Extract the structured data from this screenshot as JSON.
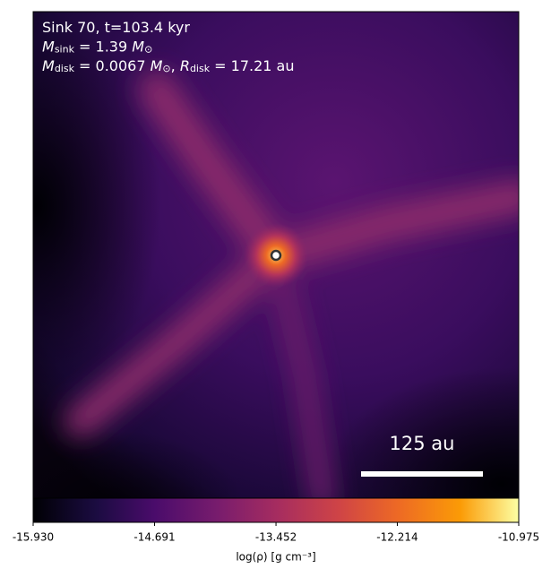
{
  "chart_data": {
    "type": "image",
    "annotations": [
      [
        {
          "text": "Sink 70, t=103.4 kyr"
        }
      ],
      [
        {
          "text": "M",
          "italic": true
        },
        {
          "text": "sink",
          "sub": true
        },
        {
          "text": " = 1.39 "
        },
        {
          "text": "M",
          "italic": true
        },
        {
          "text": "⊙",
          "sub": true
        }
      ],
      [
        {
          "text": "M",
          "italic": true
        },
        {
          "text": "disk",
          "sub": true
        },
        {
          "text": " = 0.0067 "
        },
        {
          "text": "M",
          "italic": true
        },
        {
          "text": "⊙",
          "sub": true
        },
        {
          "text": ", "
        },
        {
          "text": "R",
          "italic": true
        },
        {
          "text": "disk",
          "sub": true
        },
        {
          "text": " = 17.21 au"
        }
      ]
    ],
    "scalebar_label": "125 au",
    "colorbar": {
      "label": "log(ρ) [g cm⁻³]",
      "colormap": "inferno",
      "clim": [
        -15.93,
        -10.975
      ],
      "ticks": [
        {
          "value": -15.93,
          "label": "-15.930"
        },
        -14.691,
        -13.452,
        -12.214,
        -10.975
      ]
    }
  }
}
